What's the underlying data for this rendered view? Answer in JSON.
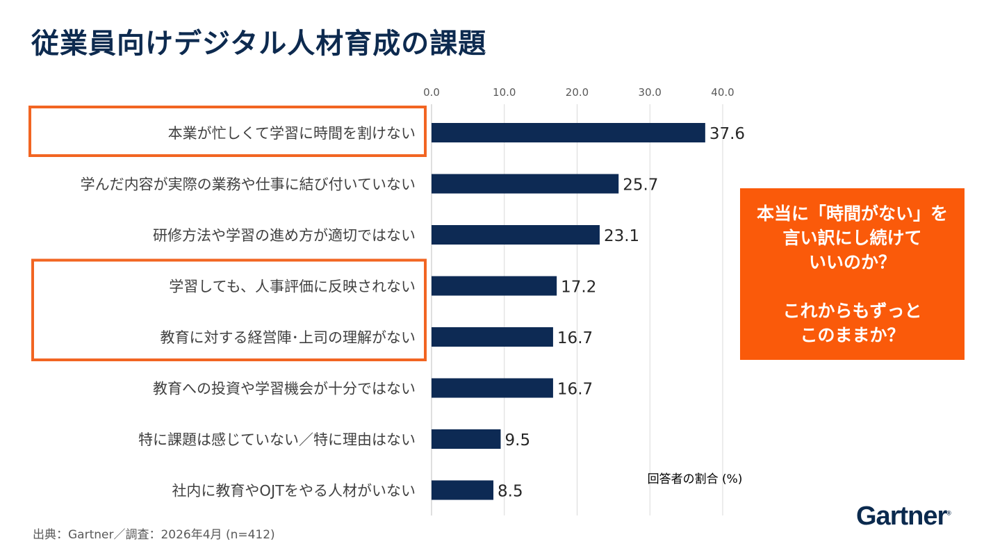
{
  "title": "従業員向けデジタル人材育成の課題",
  "chart_data": {
    "type": "bar",
    "orientation": "horizontal",
    "categories": [
      "本業が忙しくて学習に時間を割けない",
      "学んだ内容が実際の業務や仕事に結び付いていない",
      "研修方法や学習の進め方が適切ではない",
      "学習しても、人事評価に反映されない",
      "教育に対する経営陣･上司の理解がない",
      "教育への投資や学習機会が十分ではない",
      "特に課題は感じていない／特に理由はない",
      "社内に教育やOJTをやる人材がいない"
    ],
    "values": [
      37.6,
      25.7,
      23.1,
      17.2,
      16.7,
      16.7,
      9.5,
      8.5
    ],
    "value_labels": [
      "37.6",
      "25.7",
      "23.1",
      "17.2",
      "16.7",
      "16.7",
      "9.5",
      "8.5"
    ],
    "x_ticks": [
      "0.0",
      "10.0",
      "20.0",
      "30.0",
      "40.0"
    ],
    "xlim": [
      0,
      40
    ],
    "axis_position": "top",
    "xlabel": "回答者の割合 (%)",
    "grid": true,
    "bar_color": "#0d2a54",
    "highlight_color": "#f26522",
    "highlight_groups": [
      [
        0
      ],
      [
        3,
        4
      ]
    ]
  },
  "callout": {
    "lines_1": [
      "本当に「時間がない」を",
      "言い訳にし続けて",
      "いいのか？"
    ],
    "lines_2": [
      "これからもずっと",
      "このままか？"
    ],
    "color": "#fa5a0a"
  },
  "source": "出典：Gartner／調査：2026年4月 (n=412)",
  "logo": {
    "text": "Gartner",
    "mark": "®"
  }
}
